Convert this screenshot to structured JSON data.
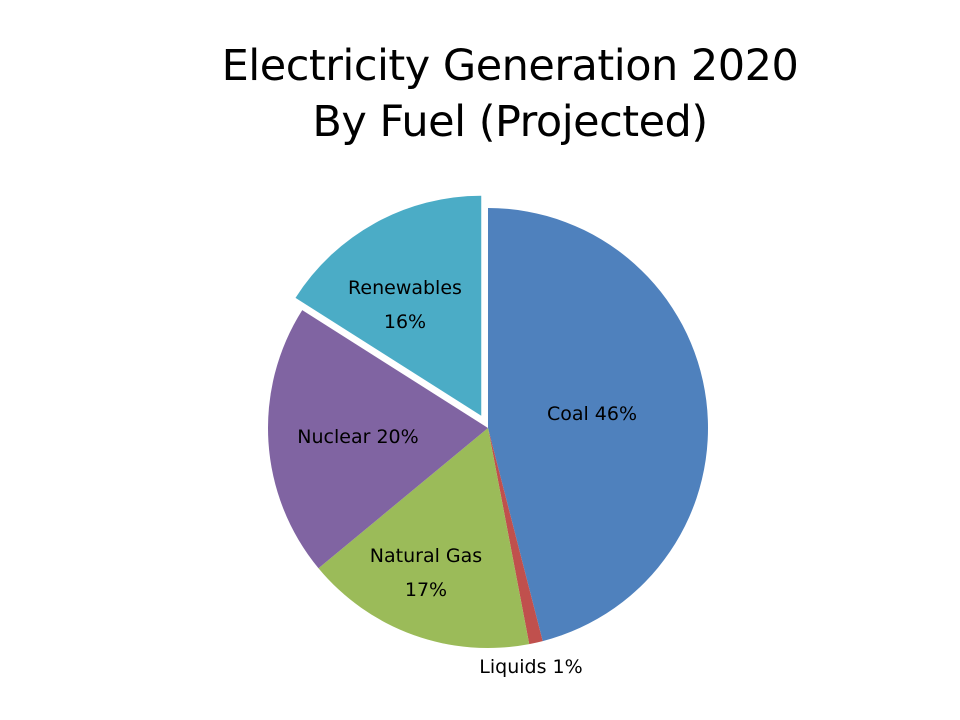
{
  "chart_data": {
    "type": "pie",
    "title": "Electricity Generation 2020",
    "subtitle": "By Fuel (Projected)",
    "categories": [
      "Coal",
      "Liquids",
      "Natural Gas",
      "Nuclear",
      "Renewables"
    ],
    "values": [
      46,
      1,
      17,
      20,
      16
    ],
    "unit": "%",
    "colors": [
      "#4F81BD",
      "#C0504D",
      "#9BBB59",
      "#8064A2",
      "#4BACC6"
    ],
    "labels": [
      "Coal  46%",
      "Liquids 1%",
      "Natural Gas\n17%",
      "Nuclear 20%",
      "Renewables\n16%"
    ],
    "exploded": [
      "Renewables"
    ],
    "legend": "none"
  },
  "title_line1": "Electricity Generation 2020",
  "title_line2": "By Fuel (Projected)",
  "slice_labels": {
    "coal": "Coal  46%",
    "liquids": "Liquids 1%",
    "natural_gas_name": "Natural Gas",
    "natural_gas_pct": "17%",
    "nuclear": "Nuclear 20%",
    "renewables_name": "Renewables",
    "renewables_pct": "16%"
  }
}
